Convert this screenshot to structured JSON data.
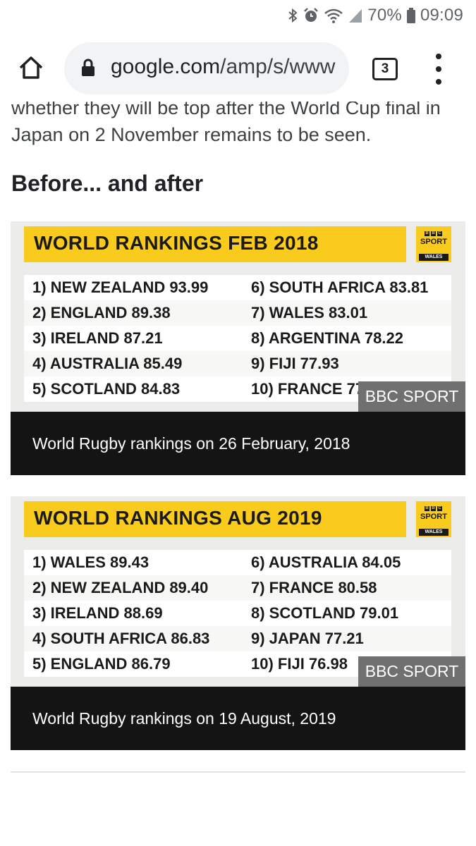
{
  "status_bar": {
    "icons": [
      "bluetooth-icon",
      "alarm-icon",
      "wifi-icon",
      "signal-icon",
      "battery-icon"
    ],
    "battery": "70%",
    "time": "09:09"
  },
  "browser": {
    "url_host": "google.com",
    "url_path": "/amp/s/www",
    "tab_count": "3"
  },
  "article": {
    "intro": "whether they will be top after the World Cup final in Japan on 2 November remains to be seen.",
    "heading": "Before... and after"
  },
  "figures": [
    {
      "banner_title": "WORLD RANKINGS FEB 2018",
      "logo": {
        "blocks": [
          "B",
          "B",
          "C"
        ],
        "sport": "SPORT",
        "region": "WALES"
      },
      "left": [
        "1) NEW ZEALAND 93.99",
        "2) ENGLAND 89.38",
        "3) IRELAND 87.21",
        "4) AUSTRALIA 85.49",
        "5) SCOTLAND 84.83"
      ],
      "right": [
        "6) SOUTH AFRICA 83.81",
        "7) WALES 83.01",
        "8) ARGENTINA 78.22",
        "9) FIJI 77.93",
        "10) FRANCE 77.93"
      ],
      "watermark": "BBC SPORT",
      "caption": "World Rugby rankings on 26 February, 2018"
    },
    {
      "banner_title": "WORLD RANKINGS AUG 2019",
      "logo": {
        "blocks": [
          "B",
          "B",
          "C"
        ],
        "sport": "SPORT",
        "region": "WALES"
      },
      "left": [
        "1) WALES 89.43",
        "2) NEW ZEALAND 89.40",
        "3) IRELAND 88.69",
        "4) SOUTH AFRICA 86.83",
        "5) ENGLAND 86.79"
      ],
      "right": [
        "6) AUSTRALIA 84.05",
        "7) FRANCE 80.58",
        "8) SCOTLAND 79.01",
        "9) JAPAN 77.21",
        "10) FIJI 76.98"
      ],
      "watermark": "BBC SPORT",
      "caption": "World Rugby rankings on 19 August, 2019"
    }
  ],
  "colors": {
    "banner": "#f8cb1c",
    "caption_bg": "#141414",
    "watermark_bg": "#707070"
  }
}
